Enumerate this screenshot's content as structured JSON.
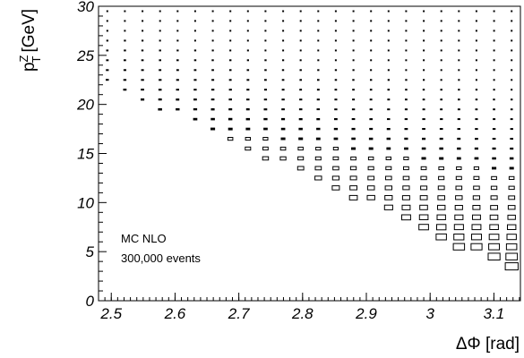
{
  "chart_data": {
    "type": "heatmap",
    "style": "box",
    "xlabel": "ΔΦ [rad]",
    "ylabel": {
      "base": "p",
      "sup": "Z",
      "sub": "T",
      "unit": "[GeV]"
    },
    "xlim": [
      2.48,
      3.14159
    ],
    "ylim": [
      0,
      30
    ],
    "x_ticks": [
      {
        "value": 2.5,
        "label": "2.5"
      },
      {
        "value": 2.6,
        "label": "2.6"
      },
      {
        "value": 2.7,
        "label": "2.7"
      },
      {
        "value": 2.8,
        "label": "2.8"
      },
      {
        "value": 2.9,
        "label": "2.9"
      },
      {
        "value": 3.0,
        "label": "3"
      },
      {
        "value": 3.1,
        "label": "3.1"
      }
    ],
    "y_ticks": [
      {
        "value": 0,
        "label": "0"
      },
      {
        "value": 5,
        "label": "5"
      },
      {
        "value": 10,
        "label": "10"
      },
      {
        "value": 15,
        "label": "15"
      },
      {
        "value": 20,
        "label": "20"
      },
      {
        "value": 25,
        "label": "25"
      },
      {
        "value": 30,
        "label": "30"
      }
    ],
    "x_bins": 24,
    "y_bins": 30,
    "content_model": "estimated from box sizes: density rises toward large ΔΦ and small pT; boundary roughly pT ≈ 12 − (3.14 − ΔΦ)·… ",
    "annotations": [
      "MC NLO",
      "300,000 events"
    ],
    "colors": {
      "frame": "#000000",
      "boxes": "#000000"
    }
  }
}
